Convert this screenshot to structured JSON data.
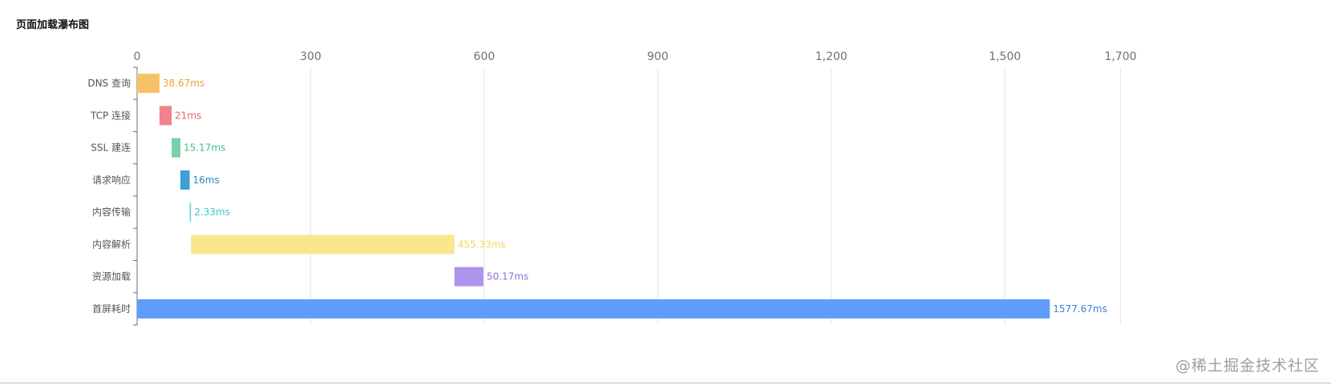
{
  "chart_data": {
    "type": "bar",
    "orientation": "horizontal",
    "stacked_waterfall": true,
    "title": "页面加载瀑布图",
    "categories": [
      "DNS 查询",
      "TCP 连接",
      "SSL 建连",
      "请求响应",
      "内容传输",
      "内容解析",
      "资源加载",
      "首屏耗时"
    ],
    "starts": [
      0,
      38.67,
      59.67,
      74.84,
      90.84,
      93.17,
      548.5,
      0
    ],
    "values": [
      38.67,
      21,
      15.17,
      16,
      2.33,
      455.33,
      50.17,
      1577.67
    ],
    "data_labels": [
      "38.67ms",
      "21ms",
      "15.17ms",
      "16ms",
      "2.33ms",
      "455.33ms",
      "50.17ms",
      "1577.67ms"
    ],
    "colors": [
      "#f7c266",
      "#f0838b",
      "#7bcfa9",
      "#3d9ed9",
      "#6fd3d8",
      "#f9e78b",
      "#ae93ec",
      "#5f9dfa"
    ],
    "label_colors": [
      "#e6a23c",
      "#e8646c",
      "#4cbb8b",
      "#2b87c6",
      "#3ec4cb",
      "#f2d65c",
      "#8e72d9",
      "#3d7fd6"
    ],
    "x_ticks": [
      0,
      300,
      600,
      900,
      1200,
      1500,
      1700
    ],
    "x_tick_labels": [
      "0",
      "300",
      "600",
      "900",
      "1,200",
      "1,500",
      "1,700"
    ],
    "xlim": [
      0,
      1700
    ],
    "x_axis_position": "top",
    "grid": true,
    "legend": "none"
  },
  "watermark": "@稀土掘金技术社区"
}
